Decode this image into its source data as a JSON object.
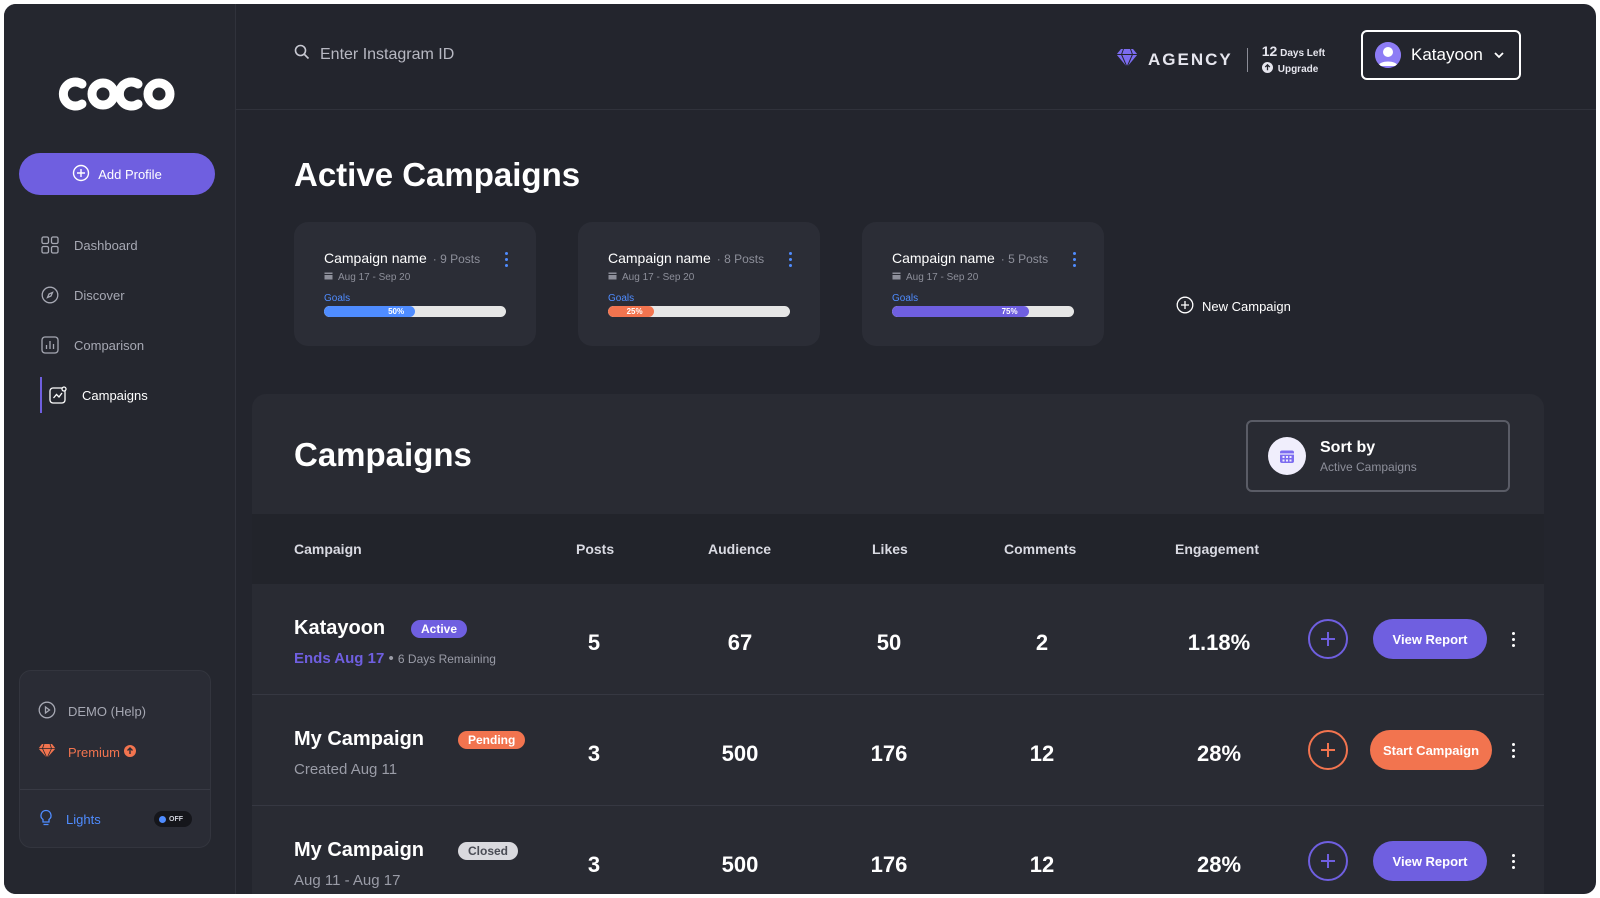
{
  "app": {
    "logo_text": "coco"
  },
  "sidebar": {
    "add_profile": "Add Profile",
    "items": [
      {
        "label": "Dashboard",
        "icon": "grid-icon"
      },
      {
        "label": "Discover",
        "icon": "compass-icon"
      },
      {
        "label": "Comparison",
        "icon": "bar-chart-icon"
      },
      {
        "label": "Campaigns",
        "icon": "campaign-icon",
        "active": true
      }
    ],
    "demo": "DEMO (Help)",
    "premium": "Premium",
    "lights": "Lights",
    "lights_toggle": "OFF"
  },
  "topbar": {
    "search_placeholder": "Enter Instagram ID",
    "plan": "AGENCY",
    "days_number": "12",
    "days_label": "Days Left",
    "upgrade": "Upgrade",
    "user": "Katayoon"
  },
  "active": {
    "title": "Active Campaigns",
    "cards": [
      {
        "name": "Campaign name",
        "posts": "9 Posts",
        "dates": "Aug 17 - Sep 20",
        "goals": "Goals",
        "progress_label": "50%",
        "progress": 0.5,
        "color": "#4f8cff"
      },
      {
        "name": "Campaign name",
        "posts": "8 Posts",
        "dates": "Aug 17 - Sep 20",
        "goals": "Goals",
        "progress_label": "25%",
        "progress": 0.25,
        "color": "#f2744f"
      },
      {
        "name": "Campaign name",
        "posts": "5 Posts",
        "dates": "Aug 17 - Sep 20",
        "goals": "Goals",
        "progress_label": "75%",
        "progress": 0.75,
        "color": "#6f5fe0"
      }
    ],
    "new_campaign": "New Campaign"
  },
  "campaigns": {
    "title": "Campaigns",
    "sort_title": "Sort by",
    "sort_value": "Active Campaigns",
    "headers": {
      "campaign": "Campaign",
      "posts": "Posts",
      "audience": "Audience",
      "likes": "Likes",
      "comments": "Comments",
      "engagement": "Engagement"
    },
    "rows": [
      {
        "name": "Katayoon",
        "status": "Active",
        "sub_highlight": "Ends Aug 17",
        "sub": "6 Days Remaining",
        "posts": "5",
        "audience": "67",
        "likes": "50",
        "comments": "2",
        "engagement": "1.18%",
        "action": "View Report"
      },
      {
        "name": "My Campaign",
        "status": "Pending",
        "sub_highlight": "",
        "sub": "Created Aug 11",
        "posts": "3",
        "audience": "500",
        "likes": "176",
        "comments": "12",
        "engagement": "28%",
        "action": "Start Campaign"
      },
      {
        "name": "My Campaign",
        "status": "Closed",
        "sub_highlight": "",
        "sub": "Aug 11 - Aug 17",
        "posts": "3",
        "audience": "500",
        "likes": "176",
        "comments": "12",
        "engagement": "28%",
        "action": "View Report"
      }
    ]
  },
  "colors": {
    "accent": "#6f5fe0",
    "orange": "#f2744f",
    "blue": "#4f8cff",
    "background": "#23252d"
  }
}
